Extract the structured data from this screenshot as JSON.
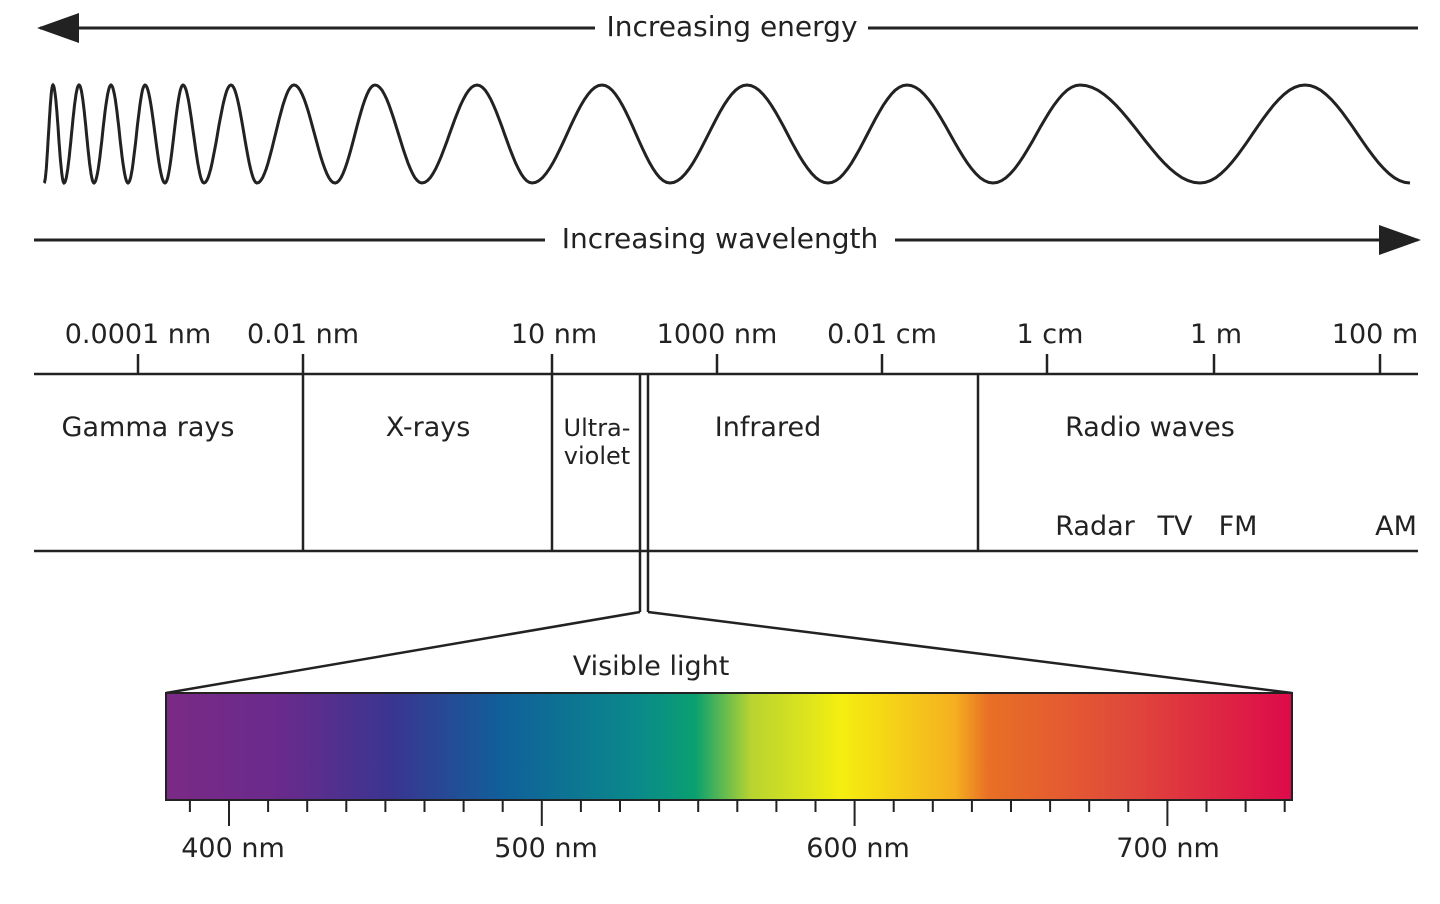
{
  "energy_label": "Increasing energy",
  "wavelength_label": "Increasing wavelength",
  "scale_ticks": [
    "0.0001 nm",
    "0.01 nm",
    "10 nm",
    "1000 nm",
    "0.01 cm",
    "1 cm",
    "1 m",
    "100 m"
  ],
  "regions": {
    "gamma": "Gamma rays",
    "xray": "X-rays",
    "uv_line1": "Ultra-",
    "uv_line2": "violet",
    "infrared": "Infrared",
    "radio": "Radio waves"
  },
  "radio_bands": [
    "Radar",
    "TV",
    "FM",
    "AM"
  ],
  "visible_label": "Visible light",
  "visible_ticks": [
    "400 nm",
    "500 nm",
    "600 nm",
    "700 nm"
  ],
  "spectrum_colors": [
    "#7a2a85",
    "#6a2a8c",
    "#3a3590",
    "#10609a",
    "#0a8a8a",
    "#0aa070",
    "#b8d430",
    "#f5ee10",
    "#f5b020",
    "#e87025",
    "#e04a3a",
    "#dd0a4a"
  ]
}
